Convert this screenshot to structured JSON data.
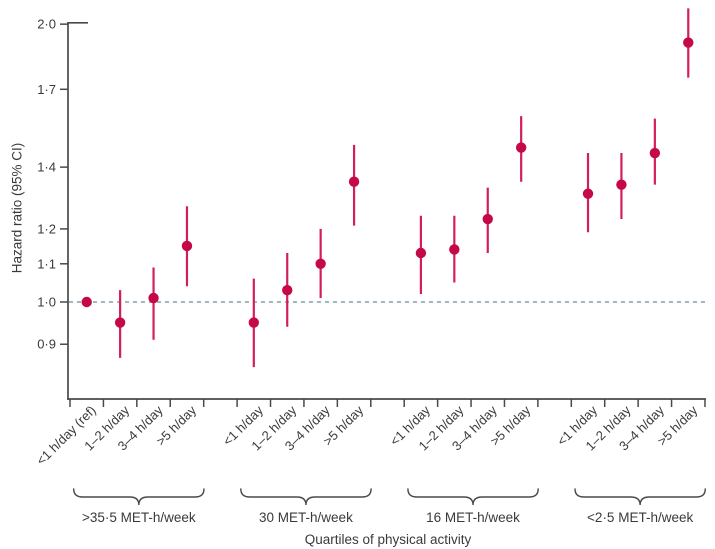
{
  "figure": {
    "ylabel": "Hazard ratio (95% CI)",
    "xlabel": "Quartiles of physical activity"
  },
  "chart_data": {
    "type": "scatter",
    "subtype": "forest-plot-error-bars",
    "title": "",
    "ylabel": "Hazard ratio (95% CI)",
    "xlabel": "Quartiles of physical activity",
    "y_scale": "log",
    "ylim": [
      0.78,
      2.02
    ],
    "grid": false,
    "legend_position": "none",
    "reference_line": 1.0,
    "y_ticks": [
      {
        "value": 2.0,
        "label": "2·0"
      },
      {
        "value": 1.7,
        "label": "1·7"
      },
      {
        "value": 1.4,
        "label": "1·4"
      },
      {
        "value": 1.2,
        "label": "1·2"
      },
      {
        "value": 1.1,
        "label": "1·1"
      },
      {
        "value": 1.0,
        "label": "1·0"
      },
      {
        "value": 0.9,
        "label": "0·9"
      }
    ],
    "groups": [
      {
        "label": ">35·5 MET-h/week",
        "points": [
          {
            "category": "<1 h/day (ref)",
            "hr": 1.0,
            "lo": null,
            "hi": null
          },
          {
            "category": "1–2 h/day",
            "hr": 0.95,
            "lo": 0.87,
            "hi": 1.03
          },
          {
            "category": "3–4 h/day",
            "hr": 1.01,
            "lo": 0.91,
            "hi": 1.09
          },
          {
            "category": ">5 h/day",
            "hr": 1.15,
            "lo": 1.04,
            "hi": 1.27
          }
        ]
      },
      {
        "label": "30 MET-h/week",
        "points": [
          {
            "category": "<1 h/day",
            "hr": 0.95,
            "lo": 0.85,
            "hi": 1.06
          },
          {
            "category": "1–2 h/day",
            "hr": 1.03,
            "lo": 0.94,
            "hi": 1.13
          },
          {
            "category": "3–4 h/day",
            "hr": 1.1,
            "lo": 1.01,
            "hi": 1.2
          },
          {
            "category": ">5 h/day",
            "hr": 1.35,
            "lo": 1.21,
            "hi": 1.48
          }
        ]
      },
      {
        "label": "16 MET-h/week",
        "points": [
          {
            "category": "<1 h/day",
            "hr": 1.13,
            "lo": 1.02,
            "hi": 1.24
          },
          {
            "category": "1–2 h/day",
            "hr": 1.14,
            "lo": 1.05,
            "hi": 1.24
          },
          {
            "category": "3–4 h/day",
            "hr": 1.23,
            "lo": 1.13,
            "hi": 1.33
          },
          {
            "category": ">5 h/day",
            "hr": 1.47,
            "lo": 1.35,
            "hi": 1.59
          }
        ]
      },
      {
        "label": "<2·5 MET-h/week",
        "points": [
          {
            "category": "<1 h/day",
            "hr": 1.31,
            "lo": 1.19,
            "hi": 1.45
          },
          {
            "category": "1–2 h/day",
            "hr": 1.34,
            "lo": 1.23,
            "hi": 1.45
          },
          {
            "category": "3–4 h/day",
            "hr": 1.45,
            "lo": 1.34,
            "hi": 1.58
          },
          {
            "category": ">5 h/day",
            "hr": 1.91,
            "lo": 1.75,
            "hi": 2.08
          }
        ]
      }
    ],
    "colors": {
      "point": "#c50848",
      "error_bar": "#d21f5a",
      "reference_line": "#95adb5",
      "axis": "#4a4a4a",
      "text": "#3a3a3a"
    }
  }
}
